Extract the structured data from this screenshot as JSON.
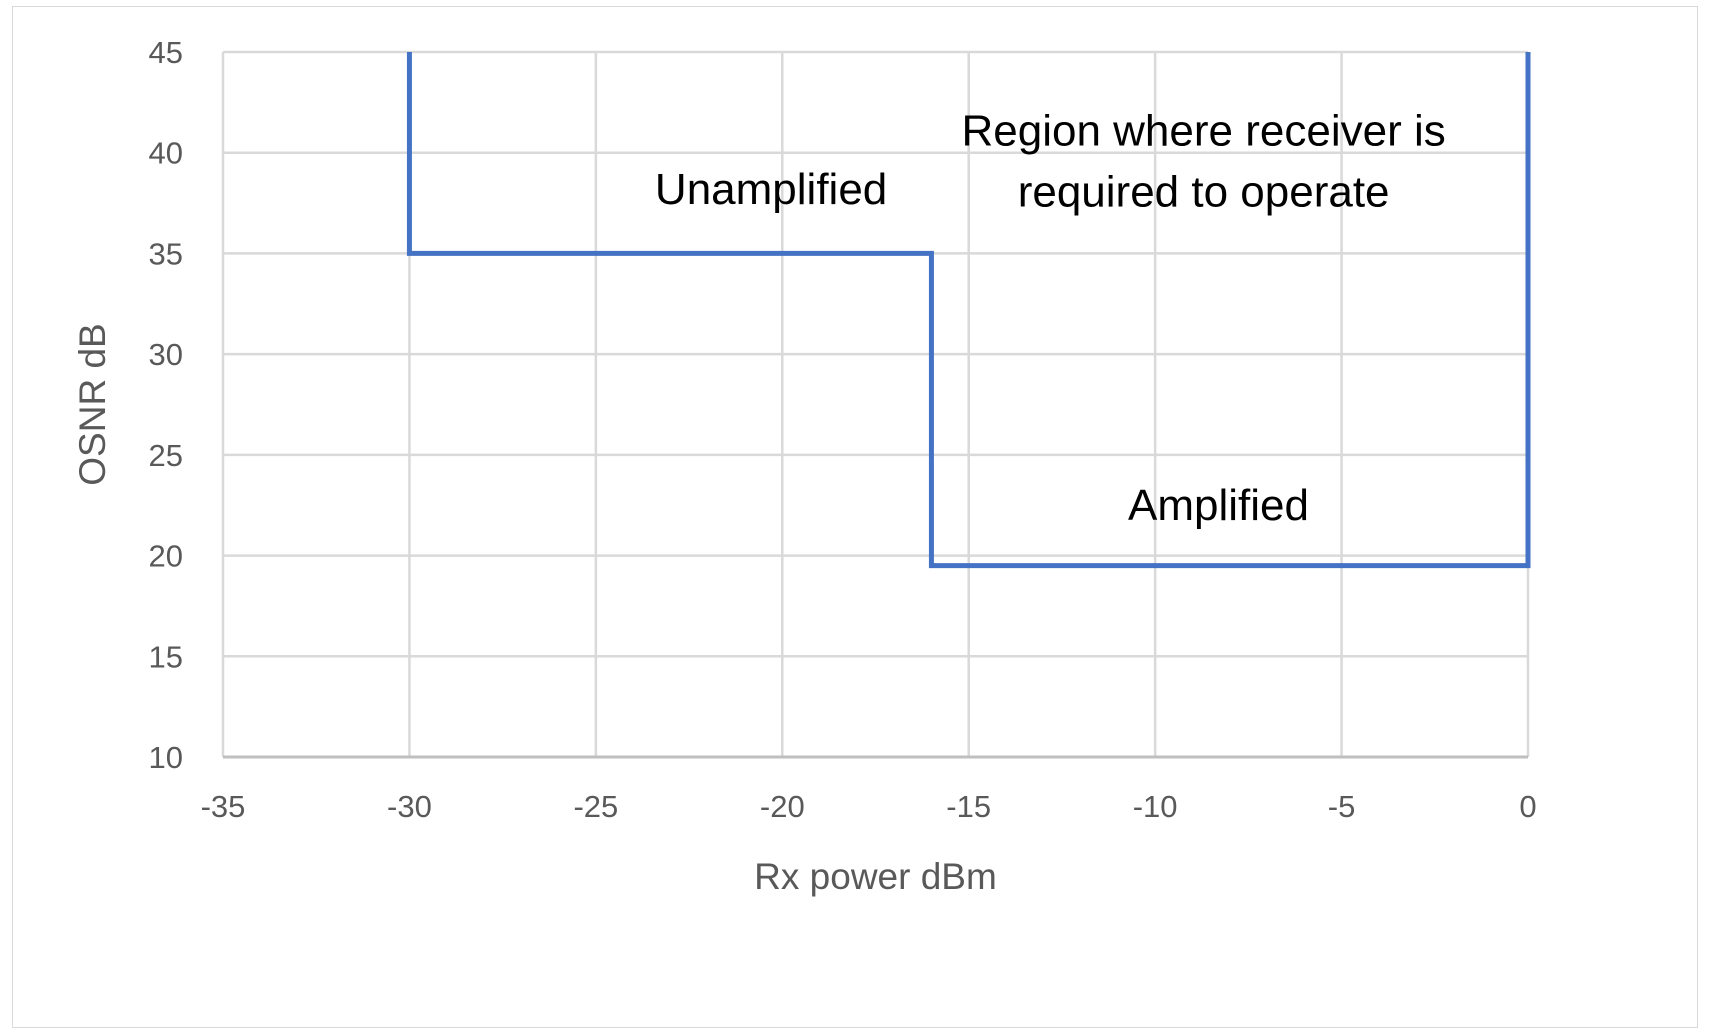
{
  "chart_data": {
    "type": "line",
    "title": "",
    "xlabel": "Rx power  dBm",
    "ylabel": "OSNR dB",
    "xlim": [
      -35,
      0
    ],
    "ylim": [
      10,
      45
    ],
    "x_ticks": [
      -35,
      -30,
      -25,
      -20,
      -15,
      -10,
      -5,
      0
    ],
    "y_ticks": [
      10,
      15,
      20,
      25,
      30,
      35,
      40,
      45
    ],
    "grid": true,
    "series": [
      {
        "color": "#4472c4",
        "points": [
          {
            "x": -30,
            "y": 45
          },
          {
            "x": -30,
            "y": 35
          },
          {
            "x": -16,
            "y": 35
          },
          {
            "x": -16,
            "y": 19.5
          },
          {
            "x": 0,
            "y": 19.5
          },
          {
            "x": 0,
            "y": 45
          }
        ]
      }
    ],
    "annotations": [
      {
        "name": "unamplified",
        "lines": [
          "Unamplified"
        ],
        "x": -20.3,
        "y": 38.2
      },
      {
        "name": "region",
        "lines": [
          "Region where receiver is",
          "required to operate"
        ],
        "x": -8.7,
        "y": 39.6
      },
      {
        "name": "amplified",
        "lines": [
          "Amplified"
        ],
        "x": -8.3,
        "y": 22.5
      }
    ]
  }
}
